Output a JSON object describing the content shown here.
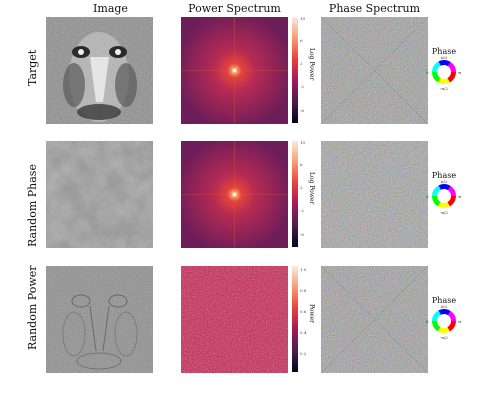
{
  "columns": {
    "image": "Image",
    "power": "Power Spectrum",
    "phase": "Phase Spectrum"
  },
  "rows": [
    {
      "label": "Target",
      "cbar_label": "Log Power",
      "cbar_ticks": [
        "10",
        "8",
        "6",
        "4",
        "2",
        "0",
        "-2",
        "-4",
        "-6",
        "-8"
      ]
    },
    {
      "label": "Random Phase",
      "cbar_label": "Log Power",
      "cbar_ticks": [
        "10",
        "8",
        "6",
        "4",
        "2",
        "0",
        "-2",
        "-4",
        "-6",
        "-8"
      ]
    },
    {
      "label": "Random Power",
      "cbar_label": "Power",
      "cbar_ticks": [
        "1.0",
        "0.8",
        "0.6",
        "0.4",
        "0.2"
      ]
    }
  ],
  "phase_legend": {
    "title": "Phase",
    "ticks": [
      "π/2",
      "0",
      "-π",
      "-π/2"
    ]
  },
  "colors": {
    "power_center": "#fdf0e0",
    "power_mid": "#e3443a",
    "power_bg": "#7b1e5a",
    "colormap_top": "#faebdd",
    "colormap_bottom": "#03051a"
  }
}
